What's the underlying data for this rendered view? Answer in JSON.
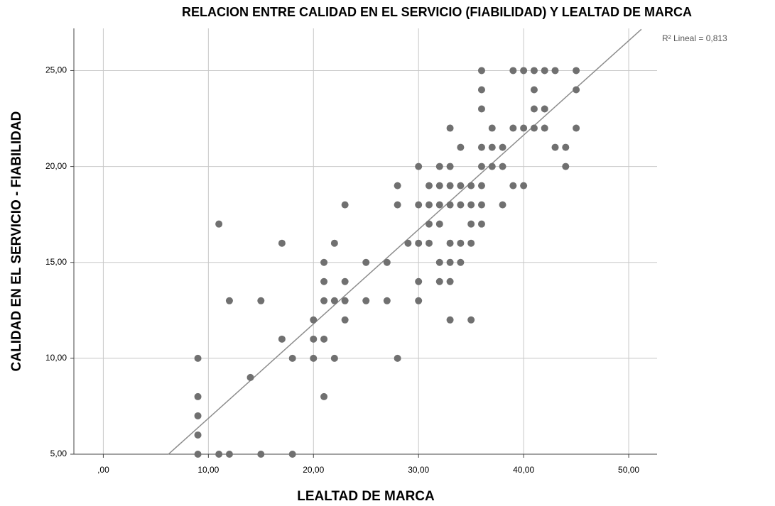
{
  "chart_data": {
    "type": "scatter",
    "title": "RELACION ENTRE CALIDAD EN EL SERVICIO (FIABILIDAD) Y LEALTAD DE MARCA",
    "x_label": "LEALTAD DE MARCA",
    "y_label": "CALIDAD EN EL SERVICIO - FIABILIDAD",
    "annotation": "R² Lineal = 0,813",
    "color": "#707070",
    "grid": true,
    "xlim": [
      -2.8,
      52.7
    ],
    "ylim": [
      5,
      27.2
    ],
    "xticks": [
      {
        "value": 0,
        "label": ",00"
      },
      {
        "value": 10,
        "label": "10,00"
      },
      {
        "value": 20,
        "label": "20,00"
      },
      {
        "value": 30,
        "label": "30,00"
      },
      {
        "value": 40,
        "label": "40,00"
      },
      {
        "value": 50,
        "label": "50,00"
      }
    ],
    "yticks": [
      {
        "value": 5,
        "label": "5,00"
      },
      {
        "value": 10,
        "label": "10,00"
      },
      {
        "value": 15,
        "label": "15,00"
      },
      {
        "value": 20,
        "label": "20,00"
      },
      {
        "value": 25,
        "label": "25,00"
      }
    ],
    "fit_line": {
      "x": [
        6.2,
        51.2
      ],
      "y": [
        5,
        27.15
      ]
    },
    "x": [
      9,
      9,
      9,
      9,
      9,
      11,
      11,
      12,
      12,
      14,
      15,
      15,
      17,
      17,
      18,
      18,
      20,
      20,
      20,
      21,
      21,
      21,
      21,
      21,
      22,
      22,
      22,
      23,
      23,
      23,
      23,
      25,
      25,
      27,
      27,
      28,
      28,
      28,
      29,
      30,
      30,
      30,
      30,
      30,
      31,
      31,
      31,
      31,
      32,
      32,
      32,
      32,
      32,
      32,
      33,
      33,
      33,
      33,
      33,
      33,
      33,
      33,
      34,
      34,
      34,
      34,
      34,
      35,
      35,
      35,
      35,
      35,
      36,
      36,
      36,
      36,
      36,
      36,
      36,
      36,
      37,
      37,
      37,
      38,
      38,
      38,
      39,
      39,
      39,
      40,
      40,
      40,
      41,
      41,
      41,
      41,
      42,
      42,
      42,
      43,
      43,
      44,
      44,
      45,
      45,
      45
    ],
    "values": [
      10,
      8,
      7,
      6,
      5,
      17,
      5,
      13,
      5,
      9,
      13,
      5,
      16,
      11,
      10,
      5,
      12,
      11,
      10,
      15,
      14,
      13,
      11,
      8,
      16,
      13,
      10,
      18,
      14,
      13,
      12,
      15,
      13,
      15,
      13,
      19,
      18,
      10,
      16,
      20,
      18,
      16,
      14,
      13,
      19,
      18,
      17,
      16,
      20,
      19,
      18,
      17,
      15,
      14,
      22,
      20,
      19,
      18,
      16,
      15,
      14,
      12,
      21,
      19,
      18,
      16,
      15,
      19,
      18,
      17,
      16,
      12,
      25,
      24,
      23,
      21,
      20,
      19,
      18,
      17,
      22,
      21,
      20,
      21,
      20,
      18,
      25,
      22,
      19,
      25,
      22,
      19,
      25,
      24,
      23,
      22,
      25,
      23,
      22,
      25,
      21,
      21,
      20,
      25,
      24,
      22
    ]
  }
}
